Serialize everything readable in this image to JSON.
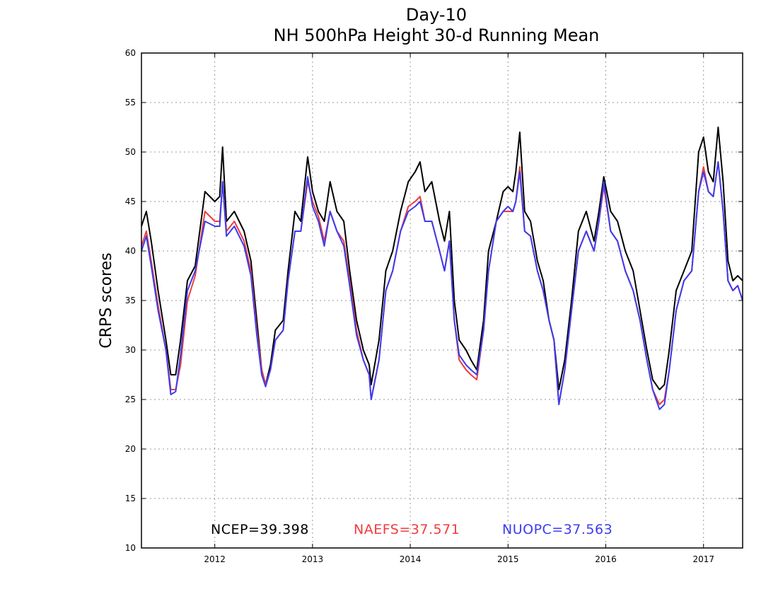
{
  "chart_data": {
    "type": "line",
    "title": [
      "Day-10",
      "NH 500hPa Height 30-d Running Mean"
    ],
    "xlabel": "",
    "ylabel": "CRPS scores",
    "xlim": [
      2011.25,
      2017.4
    ],
    "ylim": [
      10,
      60
    ],
    "yticks": [
      10,
      15,
      20,
      25,
      30,
      35,
      40,
      45,
      50,
      55,
      60
    ],
    "xticks": [
      "2012",
      "2013",
      "2014",
      "2015",
      "2016",
      "2017"
    ],
    "grid": true,
    "summary_labels": [
      {
        "text": "NCEP=39.398",
        "color": "#000000"
      },
      {
        "text": "NAEFS=37.571",
        "color": "#f03c3c"
      },
      {
        "text": "NUOPC=37.563",
        "color": "#3c3cf0"
      }
    ],
    "series": [
      {
        "name": "NCEP",
        "color": "#000000",
        "points": [
          [
            2011.25,
            42.5
          ],
          [
            2011.3,
            44
          ],
          [
            2011.35,
            41
          ],
          [
            2011.42,
            36
          ],
          [
            2011.5,
            31
          ],
          [
            2011.55,
            27.5
          ],
          [
            2011.6,
            27.5
          ],
          [
            2011.65,
            31
          ],
          [
            2011.72,
            37
          ],
          [
            2011.8,
            38.5
          ],
          [
            2011.9,
            46
          ],
          [
            2012.0,
            45
          ],
          [
            2012.05,
            45.5
          ],
          [
            2012.08,
            50.5
          ],
          [
            2012.12,
            43
          ],
          [
            2012.2,
            44
          ],
          [
            2012.3,
            42
          ],
          [
            2012.37,
            39
          ],
          [
            2012.43,
            33
          ],
          [
            2012.48,
            28
          ],
          [
            2012.52,
            26.5
          ],
          [
            2012.57,
            28.5
          ],
          [
            2012.62,
            32
          ],
          [
            2012.7,
            33
          ],
          [
            2012.75,
            38
          ],
          [
            2012.82,
            44
          ],
          [
            2012.88,
            43
          ],
          [
            2012.95,
            49.5
          ],
          [
            2013.0,
            46
          ],
          [
            2013.06,
            44
          ],
          [
            2013.12,
            43
          ],
          [
            2013.18,
            47
          ],
          [
            2013.25,
            44
          ],
          [
            2013.32,
            43
          ],
          [
            2013.38,
            38
          ],
          [
            2013.45,
            33
          ],
          [
            2013.52,
            30
          ],
          [
            2013.58,
            28.5
          ],
          [
            2013.6,
            26.5
          ],
          [
            2013.68,
            31
          ],
          [
            2013.75,
            38
          ],
          [
            2013.82,
            40
          ],
          [
            2013.9,
            44
          ],
          [
            2013.98,
            47
          ],
          [
            2014.05,
            48
          ],
          [
            2014.1,
            49
          ],
          [
            2014.15,
            46
          ],
          [
            2014.22,
            47
          ],
          [
            2014.3,
            43
          ],
          [
            2014.35,
            41
          ],
          [
            2014.4,
            44
          ],
          [
            2014.45,
            35
          ],
          [
            2014.5,
            31
          ],
          [
            2014.57,
            30
          ],
          [
            2014.62,
            29
          ],
          [
            2014.68,
            28
          ],
          [
            2014.75,
            33
          ],
          [
            2014.8,
            40
          ],
          [
            2014.88,
            43
          ],
          [
            2014.95,
            46
          ],
          [
            2015.0,
            46.5
          ],
          [
            2015.05,
            46
          ],
          [
            2015.08,
            48
          ],
          [
            2015.12,
            52
          ],
          [
            2015.17,
            44
          ],
          [
            2015.23,
            43
          ],
          [
            2015.3,
            39
          ],
          [
            2015.36,
            37
          ],
          [
            2015.42,
            33
          ],
          [
            2015.47,
            31
          ],
          [
            2015.52,
            26
          ],
          [
            2015.58,
            29
          ],
          [
            2015.65,
            35
          ],
          [
            2015.72,
            42
          ],
          [
            2015.8,
            44
          ],
          [
            2015.88,
            41
          ],
          [
            2015.93,
            44
          ],
          [
            2015.98,
            47.5
          ],
          [
            2016.05,
            44
          ],
          [
            2016.12,
            43
          ],
          [
            2016.2,
            40
          ],
          [
            2016.28,
            38
          ],
          [
            2016.35,
            34
          ],
          [
            2016.42,
            30
          ],
          [
            2016.48,
            27
          ],
          [
            2016.55,
            26
          ],
          [
            2016.6,
            26.5
          ],
          [
            2016.65,
            30
          ],
          [
            2016.72,
            36
          ],
          [
            2016.8,
            38
          ],
          [
            2016.88,
            40
          ],
          [
            2016.95,
            50
          ],
          [
            2017.0,
            51.5
          ],
          [
            2017.05,
            48
          ],
          [
            2017.1,
            47
          ],
          [
            2017.15,
            52.5
          ],
          [
            2017.2,
            47
          ],
          [
            2017.25,
            39
          ],
          [
            2017.3,
            37
          ],
          [
            2017.35,
            37.5
          ],
          [
            2017.4,
            37
          ]
        ]
      },
      {
        "name": "NAEFS",
        "color": "#f03c3c",
        "points": [
          [
            2011.25,
            40.5
          ],
          [
            2011.3,
            42
          ],
          [
            2011.35,
            39
          ],
          [
            2011.42,
            34.5
          ],
          [
            2011.5,
            30
          ],
          [
            2011.55,
            26
          ],
          [
            2011.6,
            26
          ],
          [
            2011.65,
            28.5
          ],
          [
            2011.72,
            35
          ],
          [
            2011.8,
            37.5
          ],
          [
            2011.9,
            44
          ],
          [
            2012.0,
            43
          ],
          [
            2012.05,
            43
          ],
          [
            2012.08,
            47
          ],
          [
            2012.12,
            42
          ],
          [
            2012.2,
            43
          ],
          [
            2012.3,
            41
          ],
          [
            2012.37,
            38
          ],
          [
            2012.43,
            32
          ],
          [
            2012.48,
            28
          ],
          [
            2012.52,
            26.5
          ],
          [
            2012.57,
            28
          ],
          [
            2012.62,
            31
          ],
          [
            2012.7,
            32
          ],
          [
            2012.75,
            37
          ],
          [
            2012.82,
            42
          ],
          [
            2012.88,
            42
          ],
          [
            2012.95,
            47
          ],
          [
            2013.0,
            45
          ],
          [
            2013.06,
            43.5
          ],
          [
            2013.12,
            41
          ],
          [
            2013.18,
            44
          ],
          [
            2013.25,
            42
          ],
          [
            2013.32,
            41
          ],
          [
            2013.38,
            37
          ],
          [
            2013.45,
            32
          ],
          [
            2013.52,
            29
          ],
          [
            2013.58,
            27.5
          ],
          [
            2013.6,
            25
          ],
          [
            2013.68,
            29
          ],
          [
            2013.75,
            36
          ],
          [
            2013.82,
            38
          ],
          [
            2013.9,
            42
          ],
          [
            2013.98,
            44.5
          ],
          [
            2014.05,
            45
          ],
          [
            2014.1,
            45.5
          ],
          [
            2014.15,
            43
          ],
          [
            2014.22,
            43
          ],
          [
            2014.3,
            40
          ],
          [
            2014.35,
            38
          ],
          [
            2014.4,
            41
          ],
          [
            2014.45,
            33
          ],
          [
            2014.5,
            29
          ],
          [
            2014.57,
            28
          ],
          [
            2014.62,
            27.5
          ],
          [
            2014.68,
            27
          ],
          [
            2014.75,
            32
          ],
          [
            2014.8,
            38
          ],
          [
            2014.88,
            43
          ],
          [
            2014.95,
            44
          ],
          [
            2015.0,
            44
          ],
          [
            2015.05,
            44
          ],
          [
            2015.08,
            45
          ],
          [
            2015.12,
            48.5
          ],
          [
            2015.17,
            42
          ],
          [
            2015.23,
            41.5
          ],
          [
            2015.3,
            38
          ],
          [
            2015.36,
            36
          ],
          [
            2015.42,
            33
          ],
          [
            2015.47,
            31
          ],
          [
            2015.52,
            24.5
          ],
          [
            2015.58,
            28
          ],
          [
            2015.65,
            34
          ],
          [
            2015.72,
            40
          ],
          [
            2015.8,
            42
          ],
          [
            2015.88,
            40
          ],
          [
            2015.93,
            43
          ],
          [
            2015.98,
            46.5
          ],
          [
            2016.05,
            42
          ],
          [
            2016.12,
            41
          ],
          [
            2016.2,
            38
          ],
          [
            2016.28,
            36
          ],
          [
            2016.35,
            33
          ],
          [
            2016.42,
            29
          ],
          [
            2016.48,
            26
          ],
          [
            2016.55,
            24.5
          ],
          [
            2016.6,
            25
          ],
          [
            2016.65,
            28
          ],
          [
            2016.72,
            34
          ],
          [
            2016.8,
            37
          ],
          [
            2016.88,
            38
          ],
          [
            2016.95,
            46
          ],
          [
            2017.0,
            48.5
          ],
          [
            2017.05,
            46
          ],
          [
            2017.1,
            45.5
          ],
          [
            2017.15,
            49
          ],
          [
            2017.2,
            44
          ],
          [
            2017.25,
            37
          ],
          [
            2017.3,
            36
          ],
          [
            2017.35,
            36.5
          ],
          [
            2017.4,
            35
          ]
        ]
      },
      {
        "name": "NUOPC",
        "color": "#3c3cf0",
        "points": [
          [
            2011.25,
            40
          ],
          [
            2011.3,
            41.5
          ],
          [
            2011.35,
            38.5
          ],
          [
            2011.42,
            34
          ],
          [
            2011.5,
            30
          ],
          [
            2011.55,
            25.5
          ],
          [
            2011.6,
            25.8
          ],
          [
            2011.65,
            29.5
          ],
          [
            2011.72,
            36
          ],
          [
            2011.8,
            38
          ],
          [
            2011.9,
            43
          ],
          [
            2012.0,
            42.5
          ],
          [
            2012.05,
            42.5
          ],
          [
            2012.08,
            47
          ],
          [
            2012.12,
            41.5
          ],
          [
            2012.2,
            42.5
          ],
          [
            2012.3,
            40.5
          ],
          [
            2012.37,
            37.5
          ],
          [
            2012.43,
            31.5
          ],
          [
            2012.48,
            27.5
          ],
          [
            2012.52,
            26.3
          ],
          [
            2012.57,
            28
          ],
          [
            2012.62,
            31
          ],
          [
            2012.7,
            32
          ],
          [
            2012.75,
            37
          ],
          [
            2012.82,
            42
          ],
          [
            2012.88,
            42
          ],
          [
            2012.95,
            47.5
          ],
          [
            2013.0,
            44.5
          ],
          [
            2013.06,
            43
          ],
          [
            2013.12,
            40.5
          ],
          [
            2013.18,
            44
          ],
          [
            2013.25,
            42
          ],
          [
            2013.32,
            40.5
          ],
          [
            2013.38,
            36.5
          ],
          [
            2013.45,
            31.5
          ],
          [
            2013.52,
            29
          ],
          [
            2013.58,
            27.5
          ],
          [
            2013.6,
            25
          ],
          [
            2013.68,
            29
          ],
          [
            2013.75,
            36
          ],
          [
            2013.82,
            38
          ],
          [
            2013.9,
            42
          ],
          [
            2013.98,
            44
          ],
          [
            2014.05,
            44.5
          ],
          [
            2014.1,
            45
          ],
          [
            2014.15,
            43
          ],
          [
            2014.22,
            43
          ],
          [
            2014.3,
            40
          ],
          [
            2014.35,
            38
          ],
          [
            2014.4,
            41
          ],
          [
            2014.45,
            33
          ],
          [
            2014.5,
            29.5
          ],
          [
            2014.57,
            28.5
          ],
          [
            2014.62,
            28
          ],
          [
            2014.68,
            27.5
          ],
          [
            2014.75,
            32
          ],
          [
            2014.8,
            38
          ],
          [
            2014.88,
            43
          ],
          [
            2014.95,
            44
          ],
          [
            2015.0,
            44.5
          ],
          [
            2015.05,
            44
          ],
          [
            2015.08,
            45
          ],
          [
            2015.12,
            48
          ],
          [
            2015.17,
            42
          ],
          [
            2015.23,
            41.5
          ],
          [
            2015.3,
            38
          ],
          [
            2015.36,
            36
          ],
          [
            2015.42,
            33
          ],
          [
            2015.47,
            31
          ],
          [
            2015.52,
            24.5
          ],
          [
            2015.58,
            28
          ],
          [
            2015.65,
            34
          ],
          [
            2015.72,
            40
          ],
          [
            2015.8,
            42
          ],
          [
            2015.88,
            40
          ],
          [
            2015.93,
            43
          ],
          [
            2015.98,
            47
          ],
          [
            2016.05,
            42
          ],
          [
            2016.12,
            41
          ],
          [
            2016.2,
            38
          ],
          [
            2016.28,
            36
          ],
          [
            2016.35,
            33
          ],
          [
            2016.42,
            29
          ],
          [
            2016.48,
            26
          ],
          [
            2016.55,
            24
          ],
          [
            2016.6,
            24.5
          ],
          [
            2016.65,
            28
          ],
          [
            2016.72,
            34
          ],
          [
            2016.8,
            37
          ],
          [
            2016.88,
            38
          ],
          [
            2016.95,
            46
          ],
          [
            2017.0,
            48
          ],
          [
            2017.05,
            46
          ],
          [
            2017.1,
            45.5
          ],
          [
            2017.15,
            49
          ],
          [
            2017.2,
            44
          ],
          [
            2017.25,
            37
          ],
          [
            2017.3,
            36
          ],
          [
            2017.35,
            36.5
          ],
          [
            2017.4,
            35
          ]
        ]
      }
    ]
  }
}
